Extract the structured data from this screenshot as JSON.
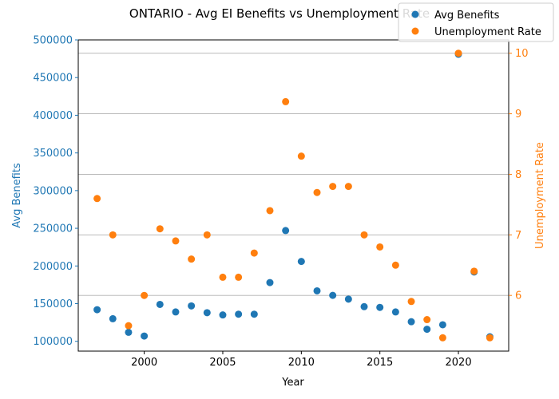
{
  "colors": {
    "left_axis": "#1f77b4",
    "right_axis": "#ff7f0e",
    "grid": "#b0b0b0",
    "axis": "#000000"
  },
  "chart_data": {
    "type": "scatter",
    "title": "ONTARIO - Avg EI Benefits vs Unemployment Rate",
    "xlabel": "Year",
    "ylabel_left": "Avg Benefits",
    "ylabel_right": "Unemployment Rate",
    "xlim": [
      1995.8,
      2023.2
    ],
    "ylim_left": [
      87000,
      500000
    ],
    "ylim_right": [
      5.08,
      10.22
    ],
    "x_ticks": [
      2000,
      2005,
      2010,
      2015,
      2020
    ],
    "y_ticks_left": [
      100000,
      150000,
      200000,
      250000,
      300000,
      350000,
      400000,
      450000,
      500000
    ],
    "y_ticks_right": [
      6,
      7,
      8,
      9,
      10
    ],
    "grid": "horizontal lines at right-axis ticks",
    "legend_position": "top-right",
    "series": [
      {
        "name": "Avg Benefits",
        "axis": "left",
        "color": "#1f77b4",
        "points": [
          [
            1997,
            142000
          ],
          [
            1998,
            130000
          ],
          [
            1999,
            112000
          ],
          [
            2000,
            107000
          ],
          [
            2001,
            149000
          ],
          [
            2002,
            139000
          ],
          [
            2003,
            147000
          ],
          [
            2004,
            138000
          ],
          [
            2005,
            135000
          ],
          [
            2006,
            136000
          ],
          [
            2007,
            136000
          ],
          [
            2008,
            178000
          ],
          [
            2009,
            247000
          ],
          [
            2010,
            206000
          ],
          [
            2011,
            167000
          ],
          [
            2012,
            161000
          ],
          [
            2013,
            156000
          ],
          [
            2014,
            146000
          ],
          [
            2015,
            145000
          ],
          [
            2016,
            139000
          ],
          [
            2017,
            126000
          ],
          [
            2018,
            116000
          ],
          [
            2019,
            122000
          ],
          [
            2020,
            481000
          ],
          [
            2021,
            192000
          ],
          [
            2022,
            106000
          ]
        ]
      },
      {
        "name": "Unemployment Rate",
        "axis": "right",
        "color": "#ff7f0e",
        "points": [
          [
            1997,
            7.6
          ],
          [
            1998,
            7.0
          ],
          [
            1999,
            5.5
          ],
          [
            2000,
            6.0
          ],
          [
            2001,
            7.1
          ],
          [
            2002,
            6.9
          ],
          [
            2003,
            6.6
          ],
          [
            2004,
            7.0
          ],
          [
            2005,
            6.3
          ],
          [
            2006,
            6.3
          ],
          [
            2007,
            6.7
          ],
          [
            2008,
            7.4
          ],
          [
            2009,
            9.2
          ],
          [
            2010,
            8.3
          ],
          [
            2011,
            7.7
          ],
          [
            2012,
            7.8
          ],
          [
            2013,
            7.8
          ],
          [
            2014,
            7.0
          ],
          [
            2015,
            6.8
          ],
          [
            2016,
            6.5
          ],
          [
            2017,
            5.9
          ],
          [
            2018,
            5.6
          ],
          [
            2019,
            5.3
          ],
          [
            2020,
            10.0
          ],
          [
            2021,
            6.4
          ],
          [
            2022,
            5.3
          ]
        ]
      }
    ]
  }
}
